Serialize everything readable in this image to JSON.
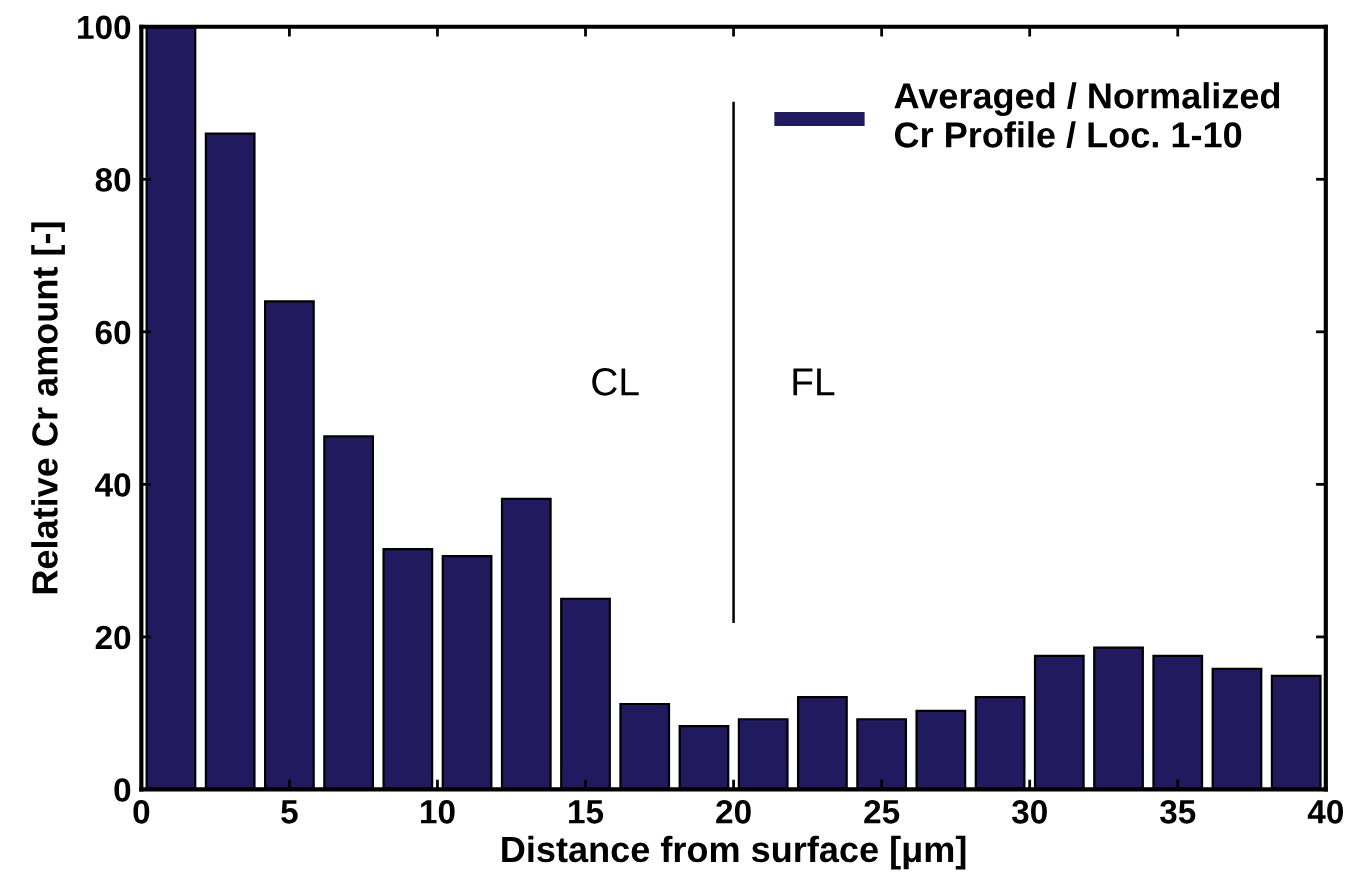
{
  "chart_data": {
    "type": "histogram",
    "xlabel": "Distance from surface [μm]",
    "ylabel": "Relative Cr amount [-]",
    "bins": [
      0,
      2,
      4,
      6,
      8,
      10,
      12,
      14,
      16,
      18,
      20,
      22,
      24,
      26,
      28,
      30,
      32,
      34,
      36,
      38,
      40
    ],
    "series": [
      {
        "name": "Averaged / Normalized\nCr Profile / Loc. 1-10",
        "color": "#211a5e",
        "values": [
          100,
          86,
          64,
          46.3,
          31.5,
          30.6,
          38.1,
          25,
          11.2,
          8.3,
          9.2,
          12.1,
          9.2,
          10.3,
          12.1,
          17.5,
          18.6,
          17.5,
          15.8,
          14.9
        ]
      }
    ],
    "xlim": [
      0,
      40
    ],
    "ylim": [
      0,
      100
    ],
    "xticks": [
      0,
      5,
      10,
      15,
      20,
      25,
      30,
      35,
      40
    ],
    "yticks": [
      0,
      20,
      40,
      60,
      80,
      100
    ],
    "ref_lines": [
      {
        "axis": "x",
        "value": 20,
        "label": null,
        "color": "#000000"
      }
    ],
    "annotations": [
      "CL",
      "FL"
    ],
    "legend": "top right",
    "grid": false
  }
}
